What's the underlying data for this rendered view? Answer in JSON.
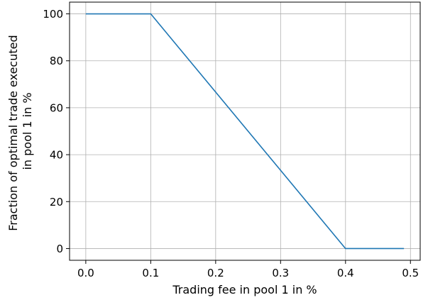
{
  "chart_data": {
    "type": "line",
    "title": "",
    "xlabel": "Trading fee in pool 1 in %",
    "ylabel_lines": [
      "Fraction of optimal trade executed",
      "in pool 1 in %"
    ],
    "xlim": [
      -0.025,
      0.515
    ],
    "ylim": [
      -5,
      105
    ],
    "x_ticks": [
      0.0,
      0.1,
      0.2,
      0.3,
      0.4,
      0.5
    ],
    "x_tick_labels": [
      "0.0",
      "0.1",
      "0.2",
      "0.3",
      "0.4",
      "0.5"
    ],
    "y_ticks": [
      0,
      20,
      40,
      60,
      80,
      100
    ],
    "y_tick_labels": [
      "0",
      "20",
      "40",
      "60",
      "80",
      "100"
    ],
    "grid": true,
    "series": [
      {
        "color": "#1f77b4",
        "x": [
          0.0,
          0.1,
          0.4,
          0.49
        ],
        "y": [
          100,
          100,
          0,
          0
        ]
      }
    ]
  }
}
